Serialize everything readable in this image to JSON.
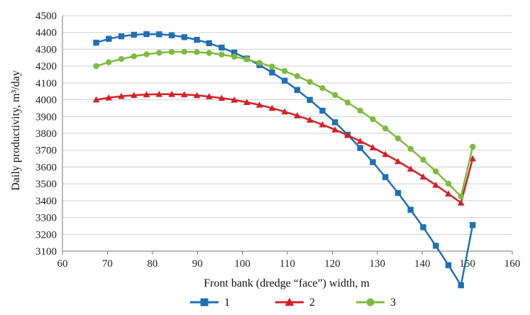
{
  "chart_data": {
    "type": "line",
    "xlabel": "Front bank (dredge “face”) width, m",
    "ylabel": "Daily productivity, m³/day",
    "xlim": [
      60,
      160
    ],
    "ylim": [
      3100,
      4500
    ],
    "x_ticks": [
      60,
      70,
      80,
      90,
      100,
      110,
      120,
      130,
      140,
      150,
      160
    ],
    "y_ticks": [
      3100,
      3200,
      3300,
      3400,
      3500,
      3600,
      3700,
      3800,
      3900,
      4000,
      4100,
      4200,
      4300,
      4400,
      4500
    ],
    "grid": "horizontal",
    "legend_position": "bottom",
    "x": [
      67.5,
      70.3,
      73.1,
      75.9,
      78.7,
      81.5,
      84.3,
      87.1,
      89.9,
      92.6,
      95.4,
      98.2,
      101.0,
      103.8,
      106.6,
      109.4,
      112.2,
      115.0,
      117.8,
      120.6,
      123.4,
      126.2,
      129.0,
      131.8,
      134.6,
      137.4,
      140.2,
      143.0,
      145.8,
      148.6,
      151.2
    ],
    "series": [
      {
        "name": "1",
        "color": "#1f6fb4",
        "marker": "square",
        "values": [
          4339,
          4362,
          4377,
          4386,
          4390,
          4389,
          4383,
          4372,
          4356,
          4336,
          4310,
          4280,
          4245,
          4206,
          4162,
          4113,
          4058,
          3999,
          3935,
          3866,
          3792,
          3713,
          3629,
          3540,
          3446,
          3346,
          3242,
          3132,
          3017,
          2897,
          3255
        ]
      },
      {
        "name": "2",
        "color": "#d42027",
        "marker": "triangle",
        "values": [
          4000,
          4012,
          4021,
          4027,
          4031,
          4033,
          4033,
          4031,
          4026,
          4019,
          4010,
          3999,
          3985,
          3969,
          3950,
          3929,
          3906,
          3880,
          3852,
          3822,
          3789,
          3754,
          3716,
          3676,
          3634,
          3589,
          3542,
          3493,
          3441,
          3387,
          3650
        ]
      },
      {
        "name": "3",
        "color": "#7dbb3f",
        "marker": "circle",
        "values": [
          4200,
          4223,
          4242,
          4258,
          4270,
          4279,
          4284,
          4285,
          4283,
          4278,
          4269,
          4256,
          4240,
          4220,
          4197,
          4170,
          4140,
          4106,
          4069,
          4028,
          3983,
          3935,
          3884,
          3829,
          3770,
          3708,
          3643,
          3574,
          3501,
          3425,
          3720
        ]
      }
    ]
  }
}
